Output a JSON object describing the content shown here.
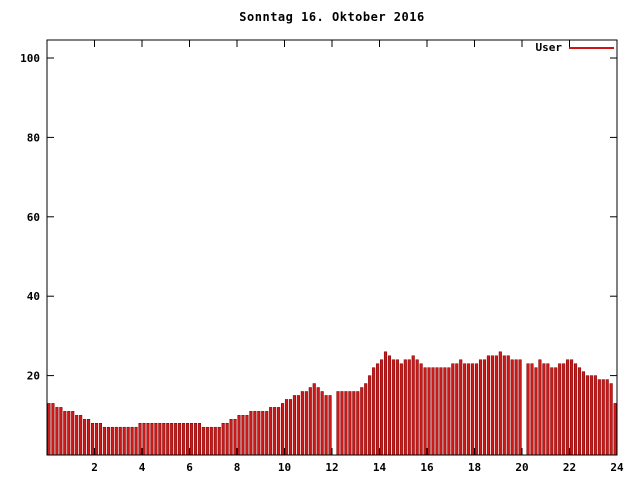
{
  "title": "Sonntag 16. Oktober 2016",
  "legend": {
    "label": "User",
    "color": "#cc1414"
  },
  "colors": {
    "bar_fill": "#cc1a1a",
    "bar_edge": "#7a0000",
    "axis": "#000000",
    "background": "#ffffff"
  },
  "chart_data": {
    "type": "bar",
    "title": "Sonntag 16. Oktober 2016",
    "xlabel": "",
    "ylabel": "",
    "xlim": [
      0,
      24
    ],
    "ylim": [
      0,
      104
    ],
    "xticks": [
      2,
      4,
      6,
      8,
      10,
      12,
      14,
      16,
      18,
      20,
      22,
      24
    ],
    "yticks": [
      20,
      40,
      60,
      80,
      100
    ],
    "grid": false,
    "legend_position": "top-right",
    "x_start_hours": 0.0833,
    "x_step_hours": 0.1667,
    "series": [
      {
        "name": "User",
        "color": "#cc1a1a",
        "values": [
          13,
          13,
          12,
          12,
          11,
          11,
          11,
          10,
          10,
          9,
          9,
          8,
          8,
          8,
          7,
          7,
          7,
          7,
          7,
          7,
          7,
          7,
          7,
          8,
          8,
          8,
          8,
          8,
          8,
          8,
          8,
          8,
          8,
          8,
          8,
          8,
          8,
          8,
          8,
          7,
          7,
          7,
          7,
          7,
          8,
          8,
          9,
          9,
          10,
          10,
          10,
          11,
          11,
          11,
          11,
          11,
          12,
          12,
          12,
          13,
          14,
          14,
          15,
          15,
          16,
          16,
          17,
          18,
          17,
          16,
          15,
          15,
          0,
          16,
          16,
          16,
          16,
          16,
          16,
          17,
          18,
          20,
          22,
          23,
          24,
          26,
          25,
          24,
          24,
          23,
          24,
          24,
          25,
          24,
          23,
          22,
          22,
          22,
          22,
          22,
          22,
          22,
          23,
          23,
          24,
          23,
          23,
          23,
          23,
          24,
          24,
          25,
          25,
          25,
          26,
          25,
          25,
          24,
          24,
          24,
          0,
          23,
          23,
          22,
          24,
          23,
          23,
          22,
          22,
          23,
          23,
          24,
          24,
          23,
          22,
          21,
          20,
          20,
          20,
          19,
          19,
          19,
          18,
          13
        ]
      }
    ]
  }
}
